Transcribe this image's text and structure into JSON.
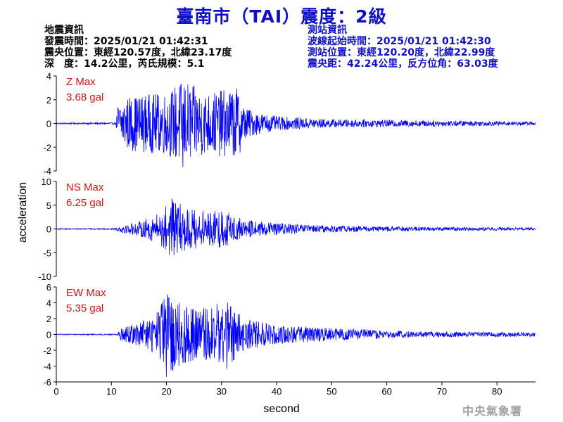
{
  "title": "臺南市（TAI）震度：2級",
  "quake_info": {
    "heading": "地震資訊",
    "origin_time": "發震時間：2025/01/21 01:42:31",
    "epicenter": "震央位置：東經120.57度，北緯23.17度",
    "depth_mag": "深　度：14.2公里，芮氏規模：5.1"
  },
  "station_info": {
    "heading": "測站資訊",
    "wave_start": "波線起始時間：2025/01/21 01:42:30",
    "location": "測站位置：東經120.20度，北緯22.99度",
    "distance": "震央距：42.24公里，反方位角：63.03度"
  },
  "agency": "中央氣象署",
  "colors": {
    "title": "#1010c8",
    "trace": "#0000ff",
    "max_label": "#e01010",
    "station_text": "#1010c8"
  },
  "chart_data": {
    "type": "line",
    "xlabel": "second",
    "ylabel": "acceleration",
    "xlim": [
      0,
      87
    ],
    "xticks": [
      0,
      10,
      20,
      30,
      40,
      50,
      60,
      70,
      80
    ],
    "panels": [
      {
        "component": "Z",
        "max_label": "Z Max",
        "max_value": "3.68 gal",
        "peak": 3.68,
        "ylim": [
          -4,
          4
        ],
        "yticks": [
          -4,
          -2,
          0,
          2,
          4
        ],
        "envelope": [
          [
            0,
            0.06
          ],
          [
            10.8,
            0.07
          ],
          [
            11.2,
            1.8
          ],
          [
            13,
            2.3
          ],
          [
            20,
            2.6
          ],
          [
            23,
            3.68
          ],
          [
            27,
            2.6
          ],
          [
            33,
            3.0
          ],
          [
            34,
            1.5
          ],
          [
            36,
            1.0
          ],
          [
            40,
            0.6
          ],
          [
            50,
            0.35
          ],
          [
            60,
            0.3
          ],
          [
            70,
            0.25
          ],
          [
            87,
            0.15
          ]
        ]
      },
      {
        "component": "NS",
        "max_label": "NS Max",
        "max_value": "6.25 gal",
        "peak": 6.25,
        "ylim": [
          -10,
          10
        ],
        "yticks": [
          -10,
          -5,
          0,
          5,
          10
        ],
        "envelope": [
          [
            0,
            0.1
          ],
          [
            10.8,
            0.15
          ],
          [
            11.5,
            0.8
          ],
          [
            15,
            1.5
          ],
          [
            18,
            3.0
          ],
          [
            21,
            6.25
          ],
          [
            24,
            4.5
          ],
          [
            28,
            3.5
          ],
          [
            30,
            4.2
          ],
          [
            34,
            2.0
          ],
          [
            38,
            1.4
          ],
          [
            45,
            0.9
          ],
          [
            55,
            0.6
          ],
          [
            65,
            0.45
          ],
          [
            75,
            0.35
          ],
          [
            87,
            0.3
          ]
        ]
      },
      {
        "component": "EW",
        "max_label": "EW Max",
        "max_value": "5.35 gal",
        "peak": 5.35,
        "ylim": [
          -6,
          6
        ],
        "yticks": [
          -6,
          -4,
          -2,
          0,
          2,
          4,
          6
        ],
        "envelope": [
          [
            0,
            0.05
          ],
          [
            10.8,
            0.08
          ],
          [
            11.5,
            0.7
          ],
          [
            15,
            1.5
          ],
          [
            18,
            2.5
          ],
          [
            20,
            5.35
          ],
          [
            24,
            3.5
          ],
          [
            28,
            3.5
          ],
          [
            31,
            4.6
          ],
          [
            34,
            2.0
          ],
          [
            40,
            1.2
          ],
          [
            50,
            0.8
          ],
          [
            56,
            0.7
          ],
          [
            60,
            0.45
          ],
          [
            70,
            0.35
          ],
          [
            87,
            0.25
          ]
        ]
      }
    ]
  }
}
